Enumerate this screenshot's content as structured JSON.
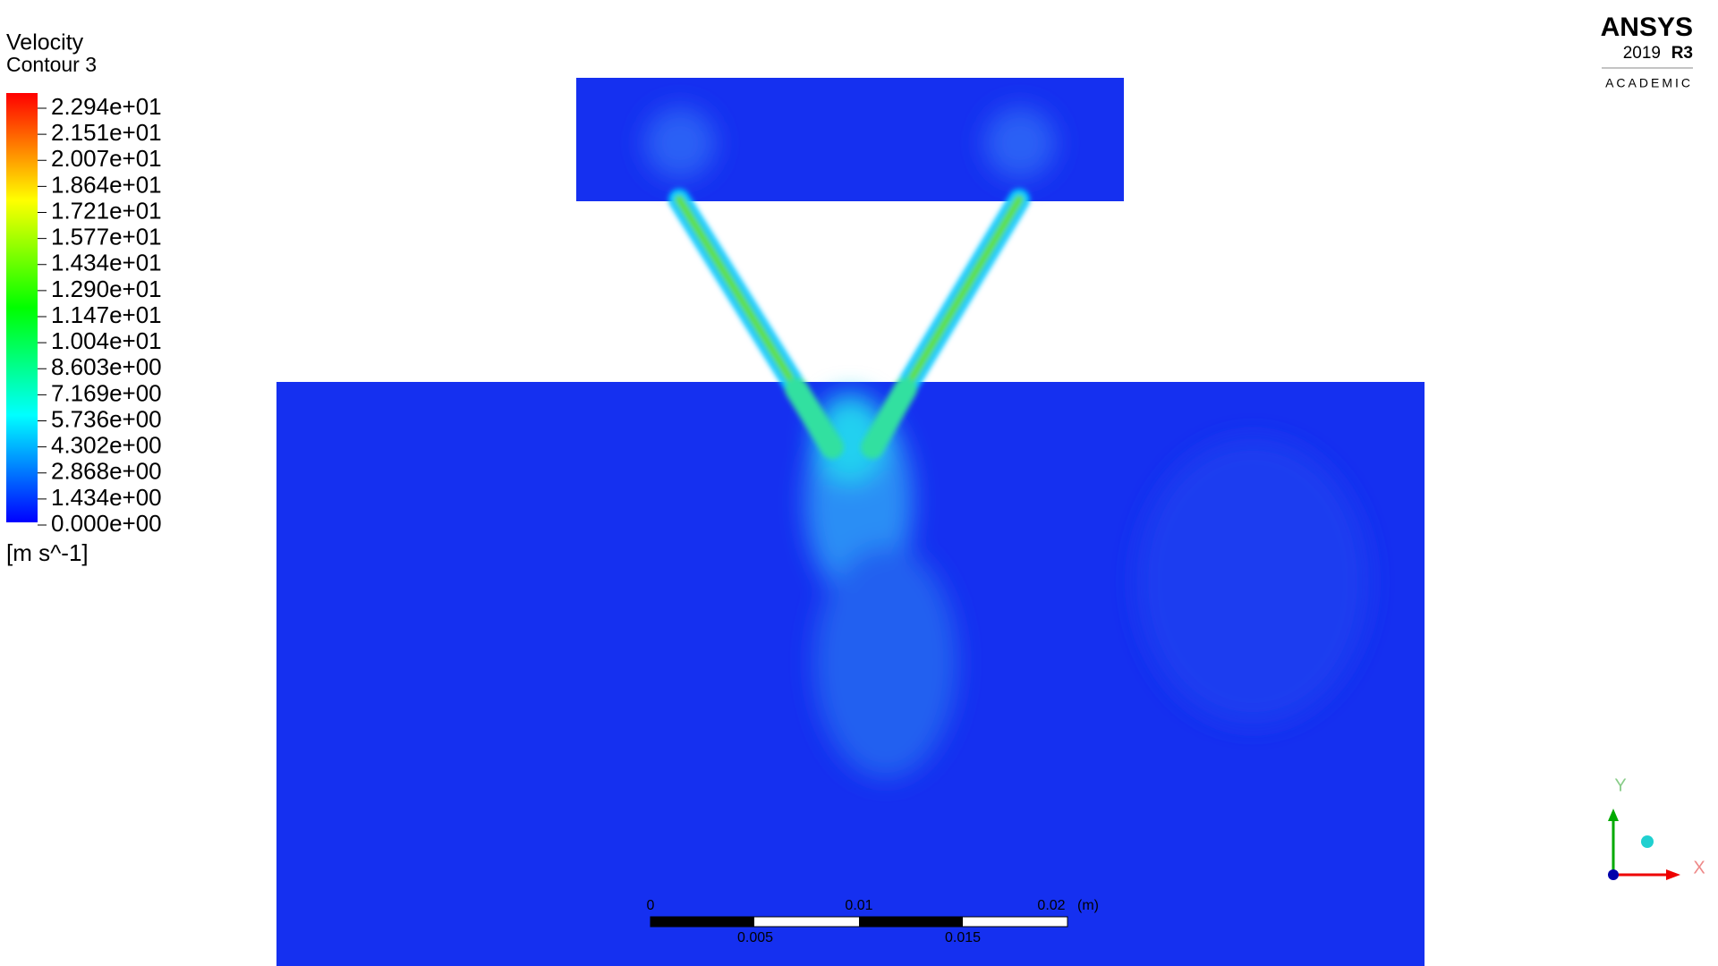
{
  "legend": {
    "title": "Velocity",
    "subtitle": "Contour 3",
    "levels": [
      "2.294e+01",
      "2.151e+01",
      "2.007e+01",
      "1.864e+01",
      "1.721e+01",
      "1.577e+01",
      "1.434e+01",
      "1.290e+01",
      "1.147e+01",
      "1.004e+01",
      "8.603e+00",
      "7.169e+00",
      "5.736e+00",
      "4.302e+00",
      "2.868e+00",
      "1.434e+00",
      "0.000e+00"
    ],
    "unit": "[m s^-1]"
  },
  "logo": {
    "brand": "ANSYS",
    "version": "2019",
    "release": "R3",
    "edition": "ACADEMIC"
  },
  "scale_bar": {
    "top_labels": [
      "0",
      "0.01",
      "0.02"
    ],
    "unit": "(m)",
    "bottom_labels": [
      "0.005",
      "0.015"
    ]
  },
  "triad": {
    "y": "Y",
    "x": "X"
  }
}
